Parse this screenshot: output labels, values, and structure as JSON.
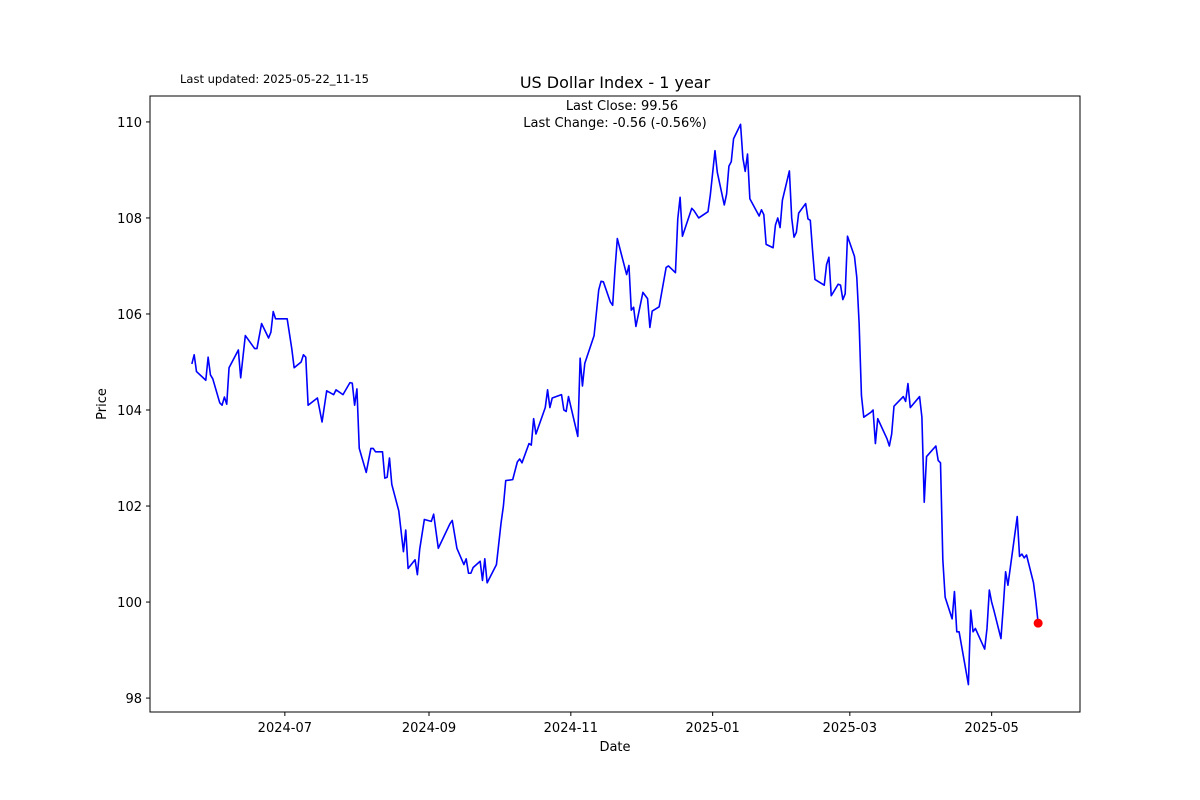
{
  "chart_data": {
    "type": "line",
    "title": "US Dollar Index - 1 year",
    "updated": "Last updated: 2025-05-22_11-15",
    "annotations": [
      "Last Close: 99.56",
      "Last Change: -0.56 (-0.56%)"
    ],
    "xlabel": "Date",
    "ylabel": "Price",
    "color": "blue",
    "last_marker_color": "red",
    "grid": false,
    "xlim": [
      "2024-05-04",
      "2025-06-08"
    ],
    "xticks": [
      {
        "value": "2024-07-01",
        "label": "2024-07"
      },
      {
        "value": "2024-09-01",
        "label": "2024-09"
      },
      {
        "value": "2024-11-01",
        "label": "2024-11"
      },
      {
        "value": "2025-01-01",
        "label": "2025-01"
      },
      {
        "value": "2025-03-01",
        "label": "2025-03"
      },
      {
        "value": "2025-05-01",
        "label": "2025-05"
      }
    ],
    "ylim": [
      97.71,
      110.54
    ],
    "yticks": [
      98,
      100,
      102,
      104,
      106,
      108,
      110
    ],
    "x": [
      "2024-05-22",
      "2024-05-23",
      "2024-05-24",
      "2024-05-28",
      "2024-05-29",
      "2024-05-30",
      "2024-05-31",
      "2024-06-03",
      "2024-06-04",
      "2024-06-05",
      "2024-06-06",
      "2024-06-07",
      "2024-06-11",
      "2024-06-12",
      "2024-06-14",
      "2024-06-18",
      "2024-06-19",
      "2024-06-21",
      "2024-06-24",
      "2024-06-25",
      "2024-06-26",
      "2024-06-27",
      "2024-07-02",
      "2024-07-04",
      "2024-07-05",
      "2024-07-08",
      "2024-07-09",
      "2024-07-10",
      "2024-07-11",
      "2024-07-15",
      "2024-07-17",
      "2024-07-19",
      "2024-07-22",
      "2024-07-23",
      "2024-07-26",
      "2024-07-29",
      "2024-07-30",
      "2024-07-31",
      "2024-08-01",
      "2024-08-02",
      "2024-08-05",
      "2024-08-07",
      "2024-08-08",
      "2024-08-09",
      "2024-08-12",
      "2024-08-13",
      "2024-08-14",
      "2024-08-15",
      "2024-08-16",
      "2024-08-19",
      "2024-08-21",
      "2024-08-22",
      "2024-08-23",
      "2024-08-26",
      "2024-08-27",
      "2024-08-28",
      "2024-08-30",
      "2024-09-02",
      "2024-09-03",
      "2024-09-05",
      "2024-09-10",
      "2024-09-11",
      "2024-09-13",
      "2024-09-16",
      "2024-09-17",
      "2024-09-18",
      "2024-09-19",
      "2024-09-20",
      "2024-09-23",
      "2024-09-24",
      "2024-09-25",
      "2024-09-26",
      "2024-09-30",
      "2024-10-02",
      "2024-10-03",
      "2024-10-04",
      "2024-10-07",
      "2024-10-09",
      "2024-10-10",
      "2024-10-11",
      "2024-10-14",
      "2024-10-15",
      "2024-10-16",
      "2024-10-17",
      "2024-10-21",
      "2024-10-22",
      "2024-10-23",
      "2024-10-24",
      "2024-10-28",
      "2024-10-29",
      "2024-10-30",
      "2024-10-31",
      "2024-11-04",
      "2024-11-05",
      "2024-11-06",
      "2024-11-07",
      "2024-11-11",
      "2024-11-13",
      "2024-11-14",
      "2024-11-15",
      "2024-11-18",
      "2024-11-19",
      "2024-11-20",
      "2024-11-21",
      "2024-11-25",
      "2024-11-26",
      "2024-11-27",
      "2024-11-28",
      "2024-11-29",
      "2024-12-02",
      "2024-12-04",
      "2024-12-05",
      "2024-12-06",
      "2024-12-09",
      "2024-12-12",
      "2024-12-13",
      "2024-12-16",
      "2024-12-17",
      "2024-12-18",
      "2024-12-19",
      "2024-12-23",
      "2024-12-24",
      "2024-12-26",
      "2024-12-30",
      "2024-12-31",
      "2025-01-02",
      "2025-01-03",
      "2025-01-06",
      "2025-01-07",
      "2025-01-08",
      "2025-01-09",
      "2025-01-10",
      "2025-01-13",
      "2025-01-14",
      "2025-01-15",
      "2025-01-16",
      "2025-01-17",
      "2025-01-21",
      "2025-01-22",
      "2025-01-23",
      "2025-01-24",
      "2025-01-27",
      "2025-01-28",
      "2025-01-29",
      "2025-01-30",
      "2025-01-31",
      "2025-02-03",
      "2025-02-04",
      "2025-02-05",
      "2025-02-06",
      "2025-02-07",
      "2025-02-10",
      "2025-02-11",
      "2025-02-12",
      "2025-02-13",
      "2025-02-14",
      "2025-02-18",
      "2025-02-19",
      "2025-02-20",
      "2025-02-21",
      "2025-02-24",
      "2025-02-25",
      "2025-02-26",
      "2025-02-27",
      "2025-02-28",
      "2025-03-03",
      "2025-03-04",
      "2025-03-05",
      "2025-03-06",
      "2025-03-07",
      "2025-03-10",
      "2025-03-11",
      "2025-03-12",
      "2025-03-13",
      "2025-03-17",
      "2025-03-18",
      "2025-03-19",
      "2025-03-20",
      "2025-03-24",
      "2025-03-25",
      "2025-03-26",
      "2025-03-27",
      "2025-03-31",
      "2025-04-01",
      "2025-04-02",
      "2025-04-03",
      "2025-04-07",
      "2025-04-08",
      "2025-04-09",
      "2025-04-10",
      "2025-04-11",
      "2025-04-14",
      "2025-04-15",
      "2025-04-16",
      "2025-04-17",
      "2025-04-21",
      "2025-04-22",
      "2025-04-23",
      "2025-04-24",
      "2025-04-28",
      "2025-04-29",
      "2025-04-30",
      "2025-05-01",
      "2025-05-02",
      "2025-05-05",
      "2025-05-06",
      "2025-05-07",
      "2025-05-08",
      "2025-05-12",
      "2025-05-13",
      "2025-05-14",
      "2025-05-15",
      "2025-05-16",
      "2025-05-19",
      "2025-05-20",
      "2025-05-21"
    ],
    "values": [
      104.96,
      105.15,
      104.8,
      104.62,
      105.1,
      104.73,
      104.65,
      104.15,
      104.1,
      104.27,
      104.12,
      104.88,
      105.25,
      104.67,
      105.55,
      105.28,
      105.28,
      105.8,
      105.5,
      105.62,
      106.05,
      105.9,
      105.9,
      105.27,
      104.88,
      105.0,
      105.15,
      105.1,
      104.1,
      104.25,
      103.75,
      104.4,
      104.32,
      104.42,
      104.32,
      104.57,
      104.56,
      104.1,
      104.44,
      103.2,
      102.7,
      103.2,
      103.2,
      103.13,
      103.13,
      102.58,
      102.6,
      103.0,
      102.45,
      101.9,
      101.05,
      101.5,
      100.7,
      100.88,
      100.57,
      101.1,
      101.72,
      101.68,
      101.83,
      101.12,
      101.63,
      101.7,
      101.12,
      100.78,
      100.9,
      100.6,
      100.6,
      100.72,
      100.85,
      100.45,
      100.9,
      100.4,
      100.78,
      101.65,
      102.0,
      102.53,
      102.55,
      102.92,
      102.98,
      102.9,
      103.3,
      103.27,
      103.82,
      103.5,
      104.05,
      104.42,
      104.05,
      104.25,
      104.32,
      104.0,
      103.97,
      104.28,
      103.45,
      105.08,
      104.5,
      104.97,
      105.55,
      106.5,
      106.68,
      106.67,
      106.25,
      106.18,
      106.93,
      107.57,
      106.82,
      107.01,
      106.08,
      106.14,
      105.74,
      106.45,
      106.32,
      105.72,
      106.06,
      106.15,
      106.97,
      107.0,
      106.86,
      107.98,
      108.43,
      107.62,
      108.2,
      108.15,
      108.0,
      108.13,
      108.48,
      109.4,
      108.95,
      108.27,
      108.5,
      109.08,
      109.17,
      109.65,
      109.95,
      109.25,
      108.97,
      109.33,
      108.4,
      108.04,
      108.17,
      108.07,
      107.45,
      107.38,
      107.85,
      108.0,
      107.8,
      108.37,
      108.98,
      108.0,
      107.6,
      107.7,
      108.1,
      108.3,
      107.98,
      107.95,
      107.3,
      106.72,
      106.6,
      107.03,
      107.18,
      106.38,
      106.62,
      106.6,
      106.3,
      106.42,
      107.62,
      107.2,
      106.76,
      105.8,
      104.3,
      103.85,
      103.95,
      104.0,
      103.3,
      103.82,
      103.4,
      103.25,
      103.5,
      104.08,
      104.28,
      104.18,
      104.55,
      104.05,
      104.28,
      103.85,
      102.08,
      103.03,
      103.25,
      102.95,
      102.9,
      100.88,
      100.1,
      99.65,
      100.22,
      99.38,
      99.38,
      98.28,
      99.83,
      99.38,
      99.45,
      99.02,
      99.45,
      100.25,
      100.0,
      99.82,
      99.24,
      99.9,
      100.63,
      100.35,
      101.78,
      100.95,
      101.0,
      100.92,
      100.98,
      100.4,
      100.02,
      99.56
    ]
  }
}
